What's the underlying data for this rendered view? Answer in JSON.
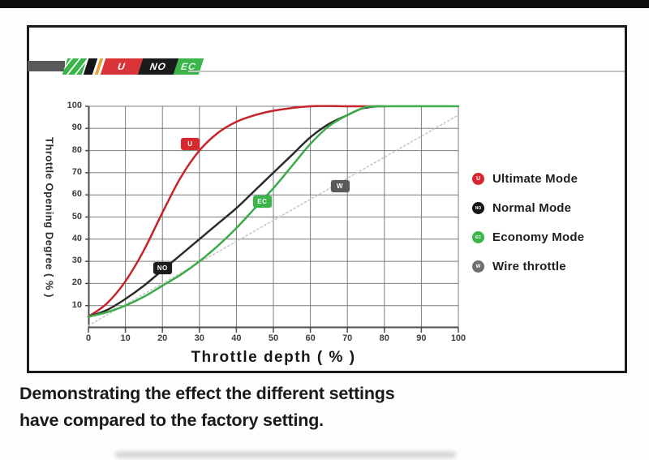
{
  "page": {
    "caption_line1": "Demonstrating the effect the different settings",
    "caption_line2": "have compared to the factory setting."
  },
  "logo": {
    "segments": [
      {
        "label": "U",
        "bg": "#d93438"
      },
      {
        "label": "NO",
        "bg": "#1b1b1b"
      },
      {
        "label": "EC",
        "bg": "#3bb54a"
      }
    ]
  },
  "chart_data": {
    "type": "line",
    "xlabel": "Throttle depth ( % )",
    "ylabel": "Throttle Opening Degree ( % )",
    "xlim": [
      0,
      100
    ],
    "ylim": [
      0,
      100
    ],
    "xticks": [
      0,
      10,
      20,
      30,
      40,
      50,
      60,
      70,
      80,
      90,
      100
    ],
    "yticks": [
      10,
      20,
      30,
      40,
      50,
      60,
      70,
      80,
      90,
      100
    ],
    "grid": true,
    "grid_color": "#7c7c7c",
    "axis_color": "#4d4d4d",
    "legend_position": "right-outside",
    "series": [
      {
        "name": "Wire throttle",
        "badge": "W",
        "color": "#c7c7c7",
        "badge_color": "#5a5a5a",
        "style": "dashed",
        "width": 1.6,
        "badge_pos": [
          68,
          64
        ],
        "points": [
          [
            0,
            1
          ],
          [
            100,
            96
          ]
        ]
      },
      {
        "name": "Ultimate Mode",
        "badge": "U",
        "color": "#c4242b",
        "badge_color": "#d7282f",
        "style": "solid",
        "width": 2.5,
        "badge_pos": [
          27.5,
          83
        ],
        "points": [
          [
            0,
            5
          ],
          [
            5,
            11
          ],
          [
            10,
            21
          ],
          [
            15,
            35
          ],
          [
            20,
            52
          ],
          [
            25,
            68
          ],
          [
            30,
            80
          ],
          [
            35,
            88
          ],
          [
            40,
            93
          ],
          [
            45,
            96
          ],
          [
            50,
            98
          ],
          [
            60,
            100
          ],
          [
            70,
            100
          ],
          [
            80,
            100
          ]
        ]
      },
      {
        "name": "Normal Mode",
        "badge": "NO",
        "color": "#2b2b2b",
        "badge_color": "#1b1b1b",
        "style": "solid",
        "width": 2.5,
        "badge_pos": [
          20,
          27
        ],
        "points": [
          [
            0,
            5
          ],
          [
            5,
            8
          ],
          [
            10,
            13
          ],
          [
            15,
            19
          ],
          [
            20,
            26
          ],
          [
            25,
            33
          ],
          [
            30,
            40
          ],
          [
            35,
            47
          ],
          [
            40,
            54
          ],
          [
            45,
            62
          ],
          [
            50,
            70
          ],
          [
            55,
            78
          ],
          [
            60,
            86
          ],
          [
            65,
            92
          ],
          [
            70,
            96
          ],
          [
            74,
            99
          ],
          [
            78,
            100
          ]
        ]
      },
      {
        "name": "Economy Mode",
        "badge": "EC",
        "color": "#3cab4a",
        "badge_color": "#3bb54a",
        "style": "solid",
        "width": 2.5,
        "badge_pos": [
          47,
          57
        ],
        "points": [
          [
            0,
            5
          ],
          [
            5,
            7
          ],
          [
            10,
            10
          ],
          [
            15,
            14
          ],
          [
            20,
            19
          ],
          [
            25,
            24
          ],
          [
            30,
            30
          ],
          [
            35,
            37
          ],
          [
            40,
            45
          ],
          [
            45,
            54
          ],
          [
            50,
            63
          ],
          [
            55,
            73
          ],
          [
            60,
            83
          ],
          [
            65,
            91
          ],
          [
            70,
            96
          ],
          [
            74,
            99
          ],
          [
            78,
            100
          ],
          [
            100,
            100
          ]
        ]
      }
    ]
  },
  "legend": {
    "items": [
      {
        "label": "Ultimate Mode",
        "marker": "U",
        "color": "#d7282f",
        "marker_font": 7
      },
      {
        "label": "Normal Mode",
        "marker": "NO",
        "color": "#161616",
        "marker_font": 5
      },
      {
        "label": "Economy Mode",
        "marker": "EC",
        "color": "#3bb54a",
        "marker_font": 5
      },
      {
        "label": "Wire throttle",
        "marker": "W",
        "color": "#6e6e6e",
        "marker_font": 6
      }
    ]
  }
}
